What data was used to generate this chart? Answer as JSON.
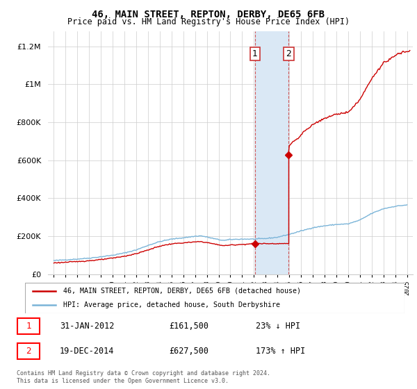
{
  "title": "46, MAIN STREET, REPTON, DERBY, DE65 6FB",
  "subtitle": "Price paid vs. HM Land Registry's House Price Index (HPI)",
  "ytick_values": [
    0,
    200000,
    400000,
    600000,
    800000,
    1000000,
    1200000
  ],
  "ylim": [
    0,
    1280000
  ],
  "xlim_start": 1994.5,
  "xlim_end": 2025.5,
  "transaction1": {
    "date_label": "31-JAN-2012",
    "price": 161500,
    "pct": "23%",
    "dir": "↓",
    "x": 2012.083
  },
  "transaction2": {
    "date_label": "19-DEC-2014",
    "price": 627500,
    "pct": "173%",
    "dir": "↑",
    "x": 2014.96
  },
  "hpi_color": "#7ab4d8",
  "price_color": "#cc0000",
  "marker_color": "#cc0000",
  "highlight_color": "#dae8f5",
  "legend_label1": "46, MAIN STREET, REPTON, DERBY, DE65 6FB (detached house)",
  "legend_label2": "HPI: Average price, detached house, South Derbyshire",
  "footer": "Contains HM Land Registry data © Crown copyright and database right 2024.\nThis data is licensed under the Open Government Licence v3.0."
}
